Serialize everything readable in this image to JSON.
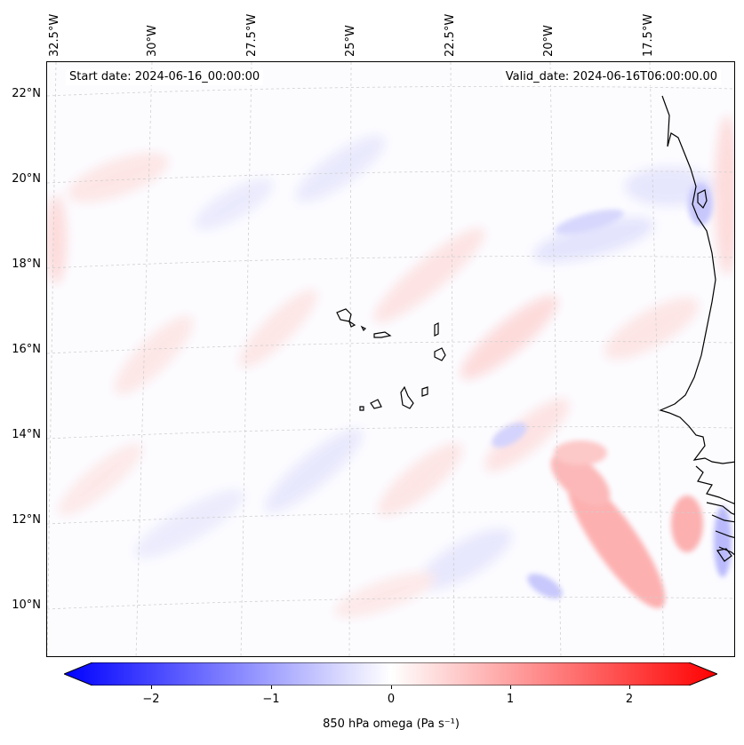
{
  "header": {
    "start_date": "Start date: 2024-06-16_00:00:00",
    "valid_date": "Valid_date: 2024-06-16T06:00:00.00"
  },
  "map": {
    "lon_labels": [
      "32.5°W",
      "30°W",
      "27.5°W",
      "25°W",
      "22.5°W",
      "20°W",
      "17.5°W"
    ],
    "lat_labels": [
      "22°N",
      "20°N",
      "18°N",
      "16°N",
      "14°N",
      "12°N",
      "10°N"
    ],
    "gridlines": "dashed"
  },
  "colorbar": {
    "label": "850 hPa omega (Pa s⁻¹)",
    "ticks": [
      "−2",
      "−1",
      "0",
      "1",
      "2"
    ],
    "min": -2.7,
    "max": 2.7,
    "colormap": "bwr",
    "extend": "both"
  },
  "colors": {
    "negative": "#0000ff",
    "neutral": "#ffffff",
    "positive": "#ff0000"
  }
}
